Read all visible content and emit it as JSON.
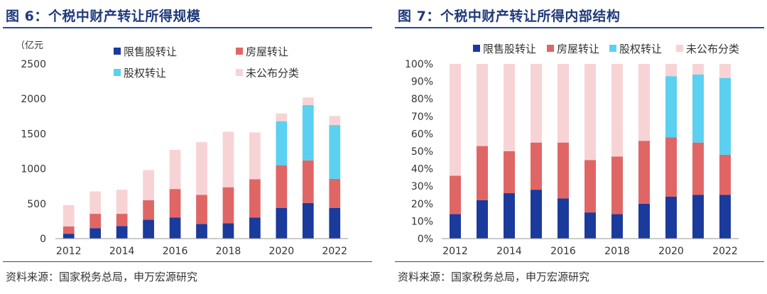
{
  "figures": [
    {
      "title": "图 6：个税中财产转让所得规模",
      "source": "资料来源：国家税务总局，申万宏源研究"
    },
    {
      "title": "图 7：个税中财产转让所得内部结构",
      "source": "资料来源：国家税务总局，申万宏源研究"
    }
  ],
  "colors": {
    "限售股转让": "#1a3a9c",
    "房屋转让": "#e06666",
    "股权转让": "#5bd0f0",
    "未公布分类": "#f8d3d5",
    "accent": "#1f3a7a"
  },
  "chart_data": [
    {
      "type": "bar",
      "stacked": true,
      "unit_label": "（亿元",
      "x": [
        2012,
        2013,
        2014,
        2015,
        2016,
        2017,
        2018,
        2019,
        2020,
        2021,
        2022
      ],
      "x_tick_labels": [
        "2012",
        "2014",
        "2016",
        "2018",
        "2020",
        "2022"
      ],
      "y_tick_labels": [
        "0",
        "500",
        "1000",
        "1500",
        "2000",
        "2500"
      ],
      "ylim": [
        0,
        2500
      ],
      "grid": false,
      "legend": {
        "placement": "top-right",
        "order": [
          "限售股转让",
          "房屋转让",
          "股权转让",
          "未公布分类"
        ]
      },
      "series": [
        {
          "name": "限售股转让",
          "values": [
            70,
            150,
            180,
            270,
            300,
            210,
            220,
            300,
            440,
            510,
            440
          ]
        },
        {
          "name": "房屋转让",
          "values": [
            105,
            205,
            175,
            280,
            410,
            415,
            515,
            550,
            610,
            610,
            415
          ]
        },
        {
          "name": "股权转让",
          "values": [
            0,
            0,
            0,
            0,
            0,
            0,
            0,
            0,
            630,
            790,
            770
          ]
        },
        {
          "name": "未公布分类",
          "values": [
            305,
            320,
            345,
            430,
            560,
            755,
            795,
            670,
            110,
            110,
            130
          ]
        }
      ]
    },
    {
      "type": "bar",
      "stacked": true,
      "percent": true,
      "x": [
        2012,
        2013,
        2014,
        2015,
        2016,
        2017,
        2018,
        2019,
        2020,
        2021,
        2022
      ],
      "x_tick_labels": [
        "2012",
        "2014",
        "2016",
        "2018",
        "2020",
        "2022"
      ],
      "y_tick_labels": [
        "0%",
        "10%",
        "20%",
        "30%",
        "40%",
        "50%",
        "60%",
        "70%",
        "80%",
        "90%",
        "100%"
      ],
      "ylim": [
        0,
        100
      ],
      "grid": false,
      "legend": {
        "placement": "top",
        "order": [
          "限售股转让",
          "房屋转让",
          "股权转让",
          "未公布分类"
        ]
      },
      "series": [
        {
          "name": "限售股转让",
          "values": [
            14,
            22,
            26,
            28,
            23,
            15,
            14,
            20,
            24,
            25,
            25
          ]
        },
        {
          "name": "房屋转让",
          "values": [
            22,
            31,
            24,
            27,
            32,
            30,
            33,
            36,
            34,
            30,
            23
          ]
        },
        {
          "name": "股权转让",
          "values": [
            0,
            0,
            0,
            0,
            0,
            0,
            0,
            0,
            35,
            39,
            44
          ]
        },
        {
          "name": "未公布分类",
          "values": [
            64,
            47,
            50,
            45,
            45,
            55,
            53,
            44,
            7,
            6,
            8
          ]
        }
      ]
    }
  ]
}
